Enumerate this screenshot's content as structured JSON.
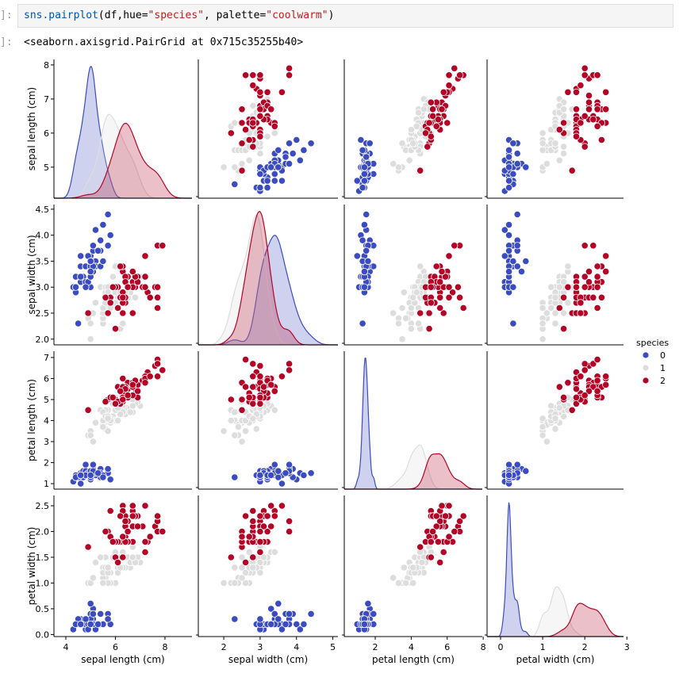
{
  "cell": {
    "in_prompt": "]:",
    "out_prompt": "]:",
    "code_fn": "sns.pairplot",
    "code_args1": "(df,hue=",
    "code_hue": "\"species\"",
    "code_args2": ", palette=",
    "code_palette": "\"coolwarm\"",
    "code_end": ")",
    "output": "<seaborn.axisgrid.PairGrid at 0x715c35255b40>"
  },
  "chart_data": {
    "type": "scatter",
    "subtype": "pairplot",
    "diag_kind": "kde",
    "variables": [
      "sepal length (cm)",
      "sepal width (cm)",
      "petal length (cm)",
      "petal width (cm)"
    ],
    "xlim": [
      [
        3.52,
        9.09
      ],
      [
        1.3,
        5.14
      ],
      [
        0.28,
        7.95
      ],
      [
        -0.32,
        2.92
      ]
    ],
    "ylim": [
      [
        4.09,
        8.16
      ],
      [
        1.89,
        4.59
      ],
      [
        0.74,
        7.3
      ],
      [
        -0.04,
        2.7
      ]
    ],
    "xticks": [
      [
        4,
        6,
        8
      ],
      [
        2,
        3,
        4,
        5
      ],
      [
        2,
        4,
        6,
        8
      ],
      [
        0,
        1,
        2,
        3
      ]
    ],
    "yticks": [
      [
        "5",
        "6",
        "7",
        "8"
      ],
      [
        "2.0",
        "2.5",
        "3.0",
        "3.5",
        "4.0",
        "4.5"
      ],
      [
        "1",
        "2",
        "3",
        "4",
        "5",
        "6",
        "7"
      ],
      [
        "0.0",
        "0.5",
        "1.0",
        "1.5",
        "2.0",
        "2.5"
      ]
    ],
    "legend": {
      "title": "species",
      "labels": [
        "0",
        "1",
        "2"
      ],
      "colors": [
        "#3b4cc0",
        "#dddddd",
        "#b40426"
      ],
      "placement": "right"
    },
    "series": [
      {
        "name": "0",
        "color": "#3b4cc0",
        "rows": [
          [
            5.1,
            3.5,
            1.4,
            0.2
          ],
          [
            4.9,
            3.0,
            1.4,
            0.2
          ],
          [
            4.7,
            3.2,
            1.3,
            0.2
          ],
          [
            4.6,
            3.1,
            1.5,
            0.2
          ],
          [
            5.0,
            3.6,
            1.4,
            0.2
          ],
          [
            5.4,
            3.9,
            1.7,
            0.4
          ],
          [
            4.6,
            3.4,
            1.4,
            0.3
          ],
          [
            5.0,
            3.4,
            1.5,
            0.2
          ],
          [
            4.4,
            2.9,
            1.4,
            0.2
          ],
          [
            4.9,
            3.1,
            1.5,
            0.1
          ],
          [
            5.4,
            3.7,
            1.5,
            0.2
          ],
          [
            4.8,
            3.4,
            1.6,
            0.2
          ],
          [
            4.8,
            3.0,
            1.4,
            0.1
          ],
          [
            4.3,
            3.0,
            1.1,
            0.1
          ],
          [
            5.8,
            4.0,
            1.2,
            0.2
          ],
          [
            5.7,
            4.4,
            1.5,
            0.4
          ],
          [
            5.4,
            3.9,
            1.3,
            0.4
          ],
          [
            5.1,
            3.5,
            1.4,
            0.3
          ],
          [
            5.7,
            3.8,
            1.7,
            0.3
          ],
          [
            5.1,
            3.8,
            1.5,
            0.3
          ],
          [
            5.4,
            3.4,
            1.7,
            0.2
          ],
          [
            5.1,
            3.7,
            1.5,
            0.4
          ],
          [
            4.6,
            3.6,
            1.0,
            0.2
          ],
          [
            5.1,
            3.3,
            1.7,
            0.5
          ],
          [
            4.8,
            3.4,
            1.9,
            0.2
          ],
          [
            5.0,
            3.0,
            1.6,
            0.2
          ],
          [
            5.0,
            3.4,
            1.6,
            0.4
          ],
          [
            5.2,
            3.5,
            1.5,
            0.2
          ],
          [
            5.2,
            3.4,
            1.4,
            0.2
          ],
          [
            4.7,
            3.2,
            1.6,
            0.2
          ],
          [
            4.8,
            3.1,
            1.6,
            0.2
          ],
          [
            5.4,
            3.4,
            1.5,
            0.4
          ],
          [
            5.2,
            4.1,
            1.5,
            0.1
          ],
          [
            5.5,
            4.2,
            1.4,
            0.2
          ],
          [
            4.9,
            3.1,
            1.5,
            0.2
          ],
          [
            5.0,
            3.2,
            1.2,
            0.2
          ],
          [
            5.5,
            3.5,
            1.3,
            0.2
          ],
          [
            4.9,
            3.6,
            1.4,
            0.1
          ],
          [
            4.4,
            3.0,
            1.3,
            0.2
          ],
          [
            5.1,
            3.4,
            1.5,
            0.2
          ],
          [
            5.0,
            3.5,
            1.3,
            0.3
          ],
          [
            4.5,
            2.3,
            1.3,
            0.3
          ],
          [
            4.4,
            3.2,
            1.3,
            0.2
          ],
          [
            5.0,
            3.5,
            1.6,
            0.6
          ],
          [
            5.1,
            3.8,
            1.9,
            0.4
          ],
          [
            4.8,
            3.0,
            1.4,
            0.3
          ],
          [
            5.1,
            3.8,
            1.6,
            0.2
          ],
          [
            4.6,
            3.2,
            1.4,
            0.2
          ],
          [
            5.3,
            3.7,
            1.5,
            0.2
          ],
          [
            5.0,
            3.3,
            1.4,
            0.2
          ]
        ]
      },
      {
        "name": "1",
        "color": "#dddddd",
        "rows": [
          [
            7.0,
            3.2,
            4.7,
            1.4
          ],
          [
            6.4,
            3.2,
            4.5,
            1.5
          ],
          [
            6.9,
            3.1,
            4.9,
            1.5
          ],
          [
            5.5,
            2.3,
            4.0,
            1.3
          ],
          [
            6.5,
            2.8,
            4.6,
            1.5
          ],
          [
            5.7,
            2.8,
            4.5,
            1.3
          ],
          [
            6.3,
            3.3,
            4.7,
            1.6
          ],
          [
            4.9,
            2.4,
            3.3,
            1.0
          ],
          [
            6.6,
            2.9,
            4.6,
            1.3
          ],
          [
            5.2,
            2.7,
            3.9,
            1.4
          ],
          [
            5.0,
            2.0,
            3.5,
            1.0
          ],
          [
            5.9,
            3.0,
            4.2,
            1.5
          ],
          [
            6.0,
            2.2,
            4.0,
            1.0
          ],
          [
            6.1,
            2.9,
            4.7,
            1.4
          ],
          [
            5.6,
            2.9,
            3.6,
            1.3
          ],
          [
            6.7,
            3.1,
            4.4,
            1.4
          ],
          [
            5.6,
            3.0,
            4.5,
            1.5
          ],
          [
            5.8,
            2.7,
            4.1,
            1.0
          ],
          [
            6.2,
            2.2,
            4.5,
            1.5
          ],
          [
            5.6,
            2.5,
            3.9,
            1.1
          ],
          [
            5.9,
            3.2,
            4.8,
            1.8
          ],
          [
            6.1,
            2.8,
            4.0,
            1.3
          ],
          [
            6.3,
            2.5,
            4.9,
            1.5
          ],
          [
            6.1,
            2.8,
            4.7,
            1.2
          ],
          [
            6.4,
            2.9,
            4.3,
            1.3
          ],
          [
            6.6,
            3.0,
            4.4,
            1.4
          ],
          [
            6.8,
            2.8,
            4.8,
            1.4
          ],
          [
            6.7,
            3.0,
            5.0,
            1.7
          ],
          [
            6.0,
            2.9,
            4.5,
            1.5
          ],
          [
            5.7,
            2.6,
            3.5,
            1.0
          ],
          [
            5.5,
            2.4,
            3.8,
            1.1
          ],
          [
            5.5,
            2.4,
            3.7,
            1.0
          ],
          [
            5.8,
            2.7,
            3.9,
            1.2
          ],
          [
            6.0,
            2.7,
            5.1,
            1.6
          ],
          [
            5.4,
            3.0,
            4.5,
            1.5
          ],
          [
            6.0,
            3.4,
            4.5,
            1.6
          ],
          [
            6.7,
            3.1,
            4.7,
            1.5
          ],
          [
            6.3,
            2.3,
            4.4,
            1.3
          ],
          [
            5.6,
            3.0,
            4.1,
            1.3
          ],
          [
            5.5,
            2.5,
            4.0,
            1.3
          ],
          [
            5.5,
            2.6,
            4.4,
            1.2
          ],
          [
            6.1,
            3.0,
            4.6,
            1.4
          ],
          [
            5.8,
            2.6,
            4.0,
            1.2
          ],
          [
            5.0,
            2.3,
            3.3,
            1.0
          ],
          [
            5.6,
            2.7,
            4.2,
            1.3
          ],
          [
            5.7,
            3.0,
            4.2,
            1.2
          ],
          [
            5.7,
            2.9,
            4.2,
            1.3
          ],
          [
            6.2,
            2.9,
            4.3,
            1.3
          ],
          [
            5.1,
            2.5,
            3.0,
            1.1
          ],
          [
            5.7,
            2.8,
            4.1,
            1.3
          ]
        ]
      },
      {
        "name": "2",
        "color": "#b40426",
        "rows": [
          [
            6.3,
            3.3,
            6.0,
            2.5
          ],
          [
            5.8,
            2.7,
            5.1,
            1.9
          ],
          [
            7.1,
            3.0,
            5.9,
            2.1
          ],
          [
            6.3,
            2.9,
            5.6,
            1.8
          ],
          [
            6.5,
            3.0,
            5.8,
            2.2
          ],
          [
            7.6,
            3.0,
            6.6,
            2.1
          ],
          [
            4.9,
            2.5,
            4.5,
            1.7
          ],
          [
            7.3,
            2.9,
            6.3,
            1.8
          ],
          [
            6.7,
            2.5,
            5.8,
            1.8
          ],
          [
            7.2,
            3.6,
            6.1,
            2.5
          ],
          [
            6.5,
            3.2,
            5.1,
            2.0
          ],
          [
            6.4,
            2.7,
            5.3,
            1.9
          ],
          [
            6.8,
            3.0,
            5.5,
            2.1
          ],
          [
            5.7,
            2.5,
            5.0,
            2.0
          ],
          [
            5.8,
            2.8,
            5.1,
            2.4
          ],
          [
            6.4,
            3.2,
            5.3,
            2.3
          ],
          [
            6.5,
            3.0,
            5.5,
            1.8
          ],
          [
            7.7,
            3.8,
            6.7,
            2.2
          ],
          [
            7.7,
            2.6,
            6.9,
            2.3
          ],
          [
            6.0,
            2.2,
            5.0,
            1.5
          ],
          [
            6.9,
            3.2,
            5.7,
            2.3
          ],
          [
            5.6,
            2.8,
            4.9,
            2.0
          ],
          [
            7.7,
            2.8,
            6.7,
            2.0
          ],
          [
            6.3,
            2.7,
            4.9,
            1.8
          ],
          [
            6.7,
            3.3,
            5.7,
            2.1
          ],
          [
            7.2,
            3.2,
            6.0,
            1.8
          ],
          [
            6.2,
            2.8,
            4.8,
            1.8
          ],
          [
            6.1,
            3.0,
            4.9,
            1.8
          ],
          [
            6.4,
            2.8,
            5.6,
            2.1
          ],
          [
            7.2,
            3.0,
            5.8,
            1.6
          ],
          [
            7.4,
            2.8,
            6.1,
            1.9
          ],
          [
            7.9,
            3.8,
            6.4,
            2.0
          ],
          [
            6.4,
            2.8,
            5.6,
            2.2
          ],
          [
            6.3,
            2.8,
            5.1,
            1.5
          ],
          [
            6.1,
            2.6,
            5.6,
            1.4
          ],
          [
            7.7,
            3.0,
            6.1,
            2.3
          ],
          [
            6.3,
            3.4,
            5.6,
            2.4
          ],
          [
            6.4,
            3.1,
            5.5,
            1.8
          ],
          [
            6.0,
            3.0,
            4.8,
            1.8
          ],
          [
            6.9,
            3.1,
            5.4,
            2.1
          ],
          [
            6.7,
            3.1,
            5.6,
            2.4
          ],
          [
            6.9,
            3.1,
            5.1,
            2.3
          ],
          [
            5.8,
            2.7,
            5.1,
            1.9
          ],
          [
            6.8,
            3.2,
            5.9,
            2.3
          ],
          [
            6.7,
            3.3,
            5.7,
            2.5
          ],
          [
            6.7,
            3.0,
            5.2,
            2.3
          ],
          [
            6.3,
            2.5,
            5.0,
            1.9
          ],
          [
            6.5,
            3.0,
            5.2,
            2.0
          ],
          [
            6.2,
            3.4,
            5.4,
            2.3
          ],
          [
            5.9,
            3.0,
            5.1,
            1.8
          ]
        ]
      }
    ]
  }
}
